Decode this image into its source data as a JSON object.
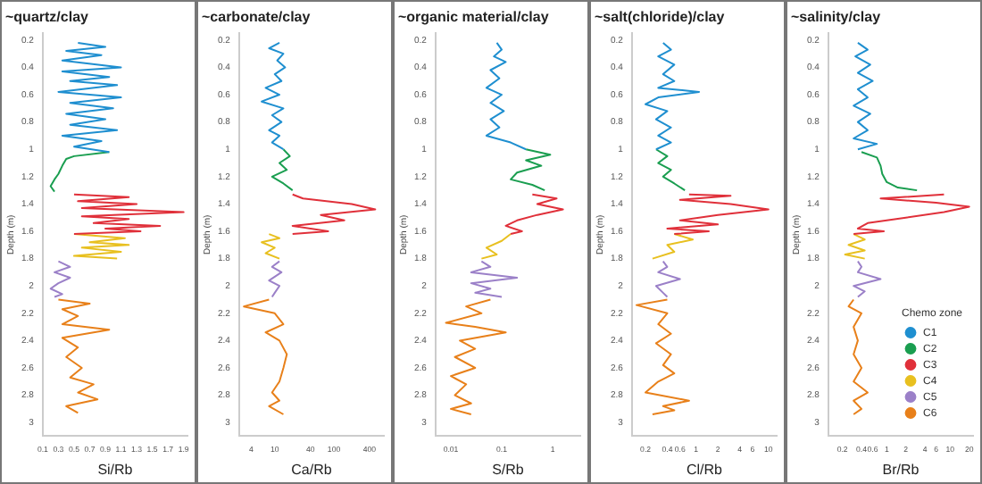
{
  "chart_data": [
    {
      "type": "line",
      "title": "~quartz/clay",
      "xlabel": "Si/Rb",
      "ylabel": "Depth (m)",
      "xlim": [
        0.1,
        1.95
      ],
      "xticks": [
        0.1,
        0.3,
        0.5,
        0.7,
        0.9,
        1.1,
        1.3,
        1.5,
        1.7,
        1.9
      ],
      "ylim": [
        3.1,
        0.15
      ],
      "yticks": [
        0.2,
        0.4,
        0.6,
        0.8,
        1,
        1.2,
        1.4,
        1.6,
        1.8,
        2,
        2.2,
        2.4,
        2.6,
        2.8,
        3
      ],
      "marker": "none",
      "series": [
        {
          "color": "#1f8fd0",
          "x": [
            0.55,
            0.9,
            0.4,
            0.85,
            0.35,
            1.1,
            0.35,
            0.95,
            0.45,
            1.05,
            0.3,
            1.1,
            0.45,
            1.0,
            0.4,
            0.9,
            0.45,
            1.05,
            0.35,
            0.85,
            0.5,
            0.95
          ],
          "values": [
            0.22,
            0.25,
            0.28,
            0.31,
            0.35,
            0.4,
            0.43,
            0.47,
            0.5,
            0.53,
            0.58,
            0.62,
            0.66,
            0.7,
            0.74,
            0.78,
            0.82,
            0.86,
            0.9,
            0.94,
            0.98,
            1.02
          ]
        },
        {
          "color": "#1a9e50",
          "x": [
            0.95,
            0.5,
            0.4,
            0.35,
            0.3,
            0.25,
            0.2,
            0.25
          ],
          "values": [
            1.02,
            1.05,
            1.07,
            1.12,
            1.18,
            1.22,
            1.27,
            1.31
          ]
        },
        {
          "color": "#e0303a",
          "x": [
            0.5,
            1.2,
            0.55,
            1.3,
            0.6,
            1.9,
            0.6,
            1.2,
            0.75,
            1.6,
            0.9,
            1.35,
            0.5
          ],
          "values": [
            1.33,
            1.35,
            1.38,
            1.4,
            1.43,
            1.46,
            1.49,
            1.51,
            1.54,
            1.56,
            1.58,
            1.6,
            1.62
          ]
        },
        {
          "color": "#e8c020",
          "x": [
            0.5,
            1.15,
            0.7,
            1.2,
            0.6,
            1.1,
            0.5,
            1.05
          ],
          "values": [
            1.62,
            1.65,
            1.68,
            1.7,
            1.72,
            1.75,
            1.78,
            1.8
          ]
        },
        {
          "color": "#9b80c8",
          "x": [
            0.3,
            0.45,
            0.25,
            0.45,
            0.3,
            0.2,
            0.35,
            0.25
          ],
          "values": [
            1.82,
            1.86,
            1.9,
            1.94,
            1.98,
            2.02,
            2.06,
            2.08
          ]
        },
        {
          "color": "#e8801a",
          "x": [
            0.3,
            0.7,
            0.35,
            0.55,
            0.35,
            0.95,
            0.35,
            0.55,
            0.4,
            0.6,
            0.45,
            0.75,
            0.55,
            0.8,
            0.4,
            0.55
          ],
          "values": [
            2.1,
            2.13,
            2.17,
            2.22,
            2.28,
            2.32,
            2.38,
            2.45,
            2.52,
            2.6,
            2.67,
            2.72,
            2.78,
            2.83,
            2.88,
            2.93
          ]
        }
      ]
    },
    {
      "type": "line",
      "title": "~carbonate/clay",
      "xlabel": "Ca/Rb",
      "ylabel": "Depth (m)",
      "log": "x",
      "xlim": [
        2.5,
        700
      ],
      "xticks": [
        4,
        10,
        40,
        100,
        400
      ],
      "ylim": [
        3.1,
        0.15
      ],
      "yticks": [
        0.2,
        0.4,
        0.6,
        0.8,
        1,
        1.2,
        1.4,
        1.6,
        1.8,
        2,
        2.2,
        2.4,
        2.6,
        2.8,
        3
      ],
      "marker": "none",
      "series": [
        {
          "color": "#1f8fd0",
          "x": [
            12,
            8,
            14,
            11,
            15,
            10,
            13,
            7,
            12,
            6,
            14,
            9,
            13,
            8,
            12,
            9,
            14
          ],
          "values": [
            0.22,
            0.26,
            0.3,
            0.35,
            0.4,
            0.45,
            0.5,
            0.55,
            0.6,
            0.65,
            0.7,
            0.75,
            0.8,
            0.86,
            0.9,
            0.95,
            1.0
          ]
        },
        {
          "color": "#1a9e50",
          "x": [
            14,
            18,
            12,
            16,
            9,
            14,
            20
          ],
          "values": [
            1.0,
            1.05,
            1.1,
            1.15,
            1.2,
            1.25,
            1.3
          ]
        },
        {
          "color": "#e0303a",
          "x": [
            20,
            30,
            200,
            500,
            60,
            150,
            20,
            80,
            20
          ],
          "values": [
            1.33,
            1.36,
            1.4,
            1.44,
            1.48,
            1.52,
            1.56,
            1.6,
            1.62
          ]
        },
        {
          "color": "#e8c020",
          "x": [
            8,
            12,
            6,
            10,
            7,
            12
          ],
          "values": [
            1.62,
            1.65,
            1.68,
            1.72,
            1.76,
            1.8
          ]
        },
        {
          "color": "#9b80c8",
          "x": [
            12,
            9,
            13,
            8,
            12,
            10,
            9
          ],
          "values": [
            1.82,
            1.86,
            1.9,
            1.96,
            2.0,
            2.05,
            2.08
          ]
        },
        {
          "color": "#e8801a",
          "x": [
            8,
            3,
            10,
            14,
            7,
            12,
            16,
            14,
            12,
            9,
            12,
            8,
            14
          ],
          "values": [
            2.1,
            2.15,
            2.2,
            2.28,
            2.34,
            2.4,
            2.5,
            2.6,
            2.7,
            2.78,
            2.84,
            2.88,
            2.94
          ]
        }
      ]
    },
    {
      "type": "line",
      "title": "~organic material/clay",
      "xlabel": "S/Rb",
      "ylabel": "Depth (m)",
      "log": "x",
      "xlim": [
        0.005,
        3.5
      ],
      "xticks": [
        0.01,
        0.1,
        1
      ],
      "ylim": [
        3.1,
        0.15
      ],
      "yticks": [
        0.2,
        0.4,
        0.6,
        0.8,
        1,
        1.2,
        1.4,
        1.6,
        1.8,
        2,
        2.2,
        2.4,
        2.6,
        2.8,
        3
      ],
      "marker": "none",
      "series": [
        {
          "color": "#1f8fd0",
          "x": [
            0.08,
            0.1,
            0.07,
            0.12,
            0.06,
            0.09,
            0.05,
            0.1,
            0.06,
            0.11,
            0.06,
            0.09,
            0.05,
            0.15,
            0.3
          ],
          "values": [
            0.22,
            0.27,
            0.32,
            0.36,
            0.42,
            0.48,
            0.55,
            0.6,
            0.66,
            0.72,
            0.78,
            0.84,
            0.9,
            0.95,
            1.0
          ]
        },
        {
          "color": "#1a9e50",
          "x": [
            0.3,
            0.9,
            0.3,
            0.6,
            0.2,
            0.15,
            0.4,
            0.7
          ],
          "values": [
            1.0,
            1.04,
            1.08,
            1.12,
            1.17,
            1.22,
            1.26,
            1.3
          ]
        },
        {
          "color": "#e0303a",
          "x": [
            0.4,
            1.2,
            0.5,
            1.6,
            0.5,
            0.2,
            0.12,
            0.25,
            0.15
          ],
          "values": [
            1.33,
            1.36,
            1.4,
            1.44,
            1.48,
            1.52,
            1.56,
            1.6,
            1.62
          ]
        },
        {
          "color": "#e8c020",
          "x": [
            0.15,
            0.1,
            0.05,
            0.08,
            0.04
          ],
          "values": [
            1.62,
            1.67,
            1.72,
            1.77,
            1.8
          ]
        },
        {
          "color": "#9b80c8",
          "x": [
            0.04,
            0.06,
            0.025,
            0.2,
            0.025,
            0.06,
            0.03,
            0.1
          ],
          "values": [
            1.82,
            1.86,
            1.9,
            1.94,
            1.98,
            2.02,
            2.05,
            2.08
          ]
        },
        {
          "color": "#e8801a",
          "x": [
            0.06,
            0.02,
            0.04,
            0.008,
            0.03,
            0.12,
            0.015,
            0.03,
            0.012,
            0.03,
            0.01,
            0.02,
            0.012,
            0.025,
            0.01,
            0.025
          ],
          "values": [
            2.1,
            2.15,
            2.2,
            2.27,
            2.3,
            2.34,
            2.4,
            2.46,
            2.52,
            2.6,
            2.66,
            2.72,
            2.8,
            2.86,
            2.9,
            2.94
          ]
        }
      ]
    },
    {
      "type": "line",
      "title": "~salt(chloride)/clay",
      "xlabel": "Cl/Rb",
      "ylabel": "Depth (m)",
      "log": "x",
      "xlim": [
        0.13,
        13
      ],
      "xticks": [
        0.2,
        0.4,
        0.6,
        1,
        2,
        4,
        6,
        10
      ],
      "ylim": [
        3.1,
        0.15
      ],
      "yticks": [
        0.2,
        0.4,
        0.6,
        0.8,
        1,
        1.2,
        1.4,
        1.6,
        1.8,
        2,
        2.2,
        2.4,
        2.6,
        2.8,
        3
      ],
      "marker": "none",
      "series": [
        {
          "color": "#1f8fd0",
          "x": [
            0.35,
            0.45,
            0.3,
            0.5,
            0.35,
            0.5,
            0.3,
            1.1,
            0.3,
            0.2,
            0.4,
            0.28,
            0.45,
            0.3,
            0.45,
            0.28
          ],
          "values": [
            0.22,
            0.27,
            0.32,
            0.38,
            0.45,
            0.5,
            0.55,
            0.58,
            0.62,
            0.67,
            0.72,
            0.78,
            0.84,
            0.9,
            0.95,
            1.0
          ]
        },
        {
          "color": "#1a9e50",
          "x": [
            0.28,
            0.4,
            0.3,
            0.45,
            0.35,
            0.5,
            0.7
          ],
          "values": [
            1.0,
            1.05,
            1.1,
            1.15,
            1.2,
            1.25,
            1.3
          ]
        },
        {
          "color": "#e0303a",
          "x": [
            0.8,
            3,
            0.6,
            3,
            10,
            2,
            0.6,
            2,
            0.4,
            1.5,
            0.5
          ],
          "values": [
            1.33,
            1.34,
            1.37,
            1.4,
            1.44,
            1.48,
            1.52,
            1.55,
            1.58,
            1.6,
            1.62
          ]
        },
        {
          "color": "#e8c020",
          "x": [
            0.5,
            0.9,
            0.4,
            0.5,
            0.25
          ],
          "values": [
            1.62,
            1.66,
            1.7,
            1.75,
            1.8
          ]
        },
        {
          "color": "#9b80c8",
          "x": [
            0.35,
            0.4,
            0.3,
            0.6,
            0.28,
            0.35,
            0.4
          ],
          "values": [
            1.82,
            1.86,
            1.9,
            1.95,
            2.0,
            2.05,
            2.08
          ]
        },
        {
          "color": "#e8801a",
          "x": [
            0.4,
            0.15,
            0.4,
            0.3,
            0.45,
            0.28,
            0.45,
            0.35,
            0.5,
            0.3,
            0.2,
            0.8,
            0.35,
            0.5,
            0.25
          ],
          "values": [
            2.1,
            2.14,
            2.2,
            2.28,
            2.35,
            2.42,
            2.5,
            2.58,
            2.64,
            2.7,
            2.78,
            2.84,
            2.88,
            2.91,
            2.94
          ]
        }
      ]
    },
    {
      "type": "line",
      "title": "~salinity/clay",
      "xlabel": "Br/Rb",
      "ylabel": "Depth (m)",
      "legend_title": "Chemo zone",
      "legend": "bottom right",
      "log": "x",
      "xlim": [
        0.12,
        23
      ],
      "xticks": [
        0.2,
        0.4,
        0.6,
        1,
        2,
        4,
        6,
        10,
        20
      ],
      "ylim": [
        3.1,
        0.15
      ],
      "yticks": [
        0.2,
        0.4,
        0.6,
        0.8,
        1,
        1.2,
        1.4,
        1.6,
        1.8,
        2,
        2.2,
        2.4,
        2.6,
        2.8,
        3
      ],
      "marker": "none",
      "series": [
        {
          "name": "C1",
          "color": "#1f8fd0",
          "x": [
            0.35,
            0.5,
            0.32,
            0.55,
            0.35,
            0.6,
            0.35,
            0.5,
            0.3,
            0.55,
            0.35,
            0.5,
            0.3,
            0.7,
            0.35
          ],
          "values": [
            0.22,
            0.27,
            0.32,
            0.38,
            0.44,
            0.5,
            0.56,
            0.62,
            0.68,
            0.74,
            0.8,
            0.86,
            0.92,
            0.96,
            1.0
          ]
        },
        {
          "name": "C2",
          "color": "#1a9e50",
          "x": [
            0.4,
            0.7,
            0.8,
            0.85,
            1.0,
            1.5,
            3
          ],
          "values": [
            1.02,
            1.06,
            1.12,
            1.18,
            1.24,
            1.28,
            1.3
          ]
        },
        {
          "name": "C3",
          "color": "#e0303a",
          "x": [
            8,
            0.8,
            6,
            20,
            8,
            2,
            0.5,
            0.35,
            0.9,
            0.3
          ],
          "values": [
            1.33,
            1.36,
            1.39,
            1.42,
            1.46,
            1.5,
            1.54,
            1.58,
            1.6,
            1.62
          ]
        },
        {
          "name": "C4",
          "color": "#e8c020",
          "x": [
            0.3,
            0.45,
            0.25,
            0.45,
            0.22,
            0.45
          ],
          "values": [
            1.62,
            1.66,
            1.7,
            1.74,
            1.77,
            1.8
          ]
        },
        {
          "name": "C5",
          "color": "#9b80c8",
          "x": [
            0.35,
            0.4,
            0.35,
            0.8,
            0.3,
            0.45,
            0.35
          ],
          "values": [
            1.82,
            1.86,
            1.9,
            1.95,
            2.0,
            2.04,
            2.08
          ]
        },
        {
          "name": "C6",
          "color": "#e8801a",
          "x": [
            0.3,
            0.25,
            0.4,
            0.3,
            0.35,
            0.3,
            0.4,
            0.3,
            0.5,
            0.3,
            0.4,
            0.3
          ],
          "values": [
            2.1,
            2.15,
            2.2,
            2.3,
            2.4,
            2.5,
            2.6,
            2.7,
            2.78,
            2.84,
            2.9,
            2.94
          ]
        }
      ]
    }
  ]
}
